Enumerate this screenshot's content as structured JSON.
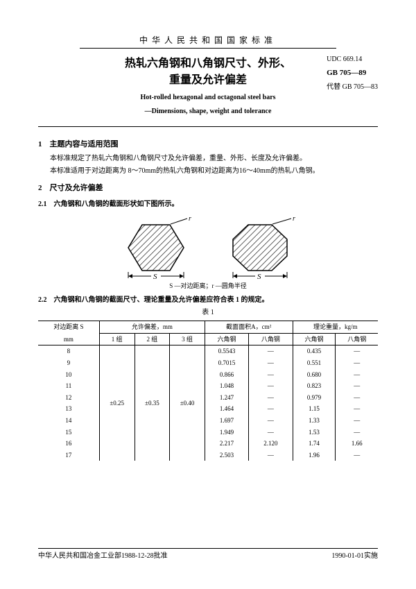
{
  "header": {
    "supTitle": "中华人民共和国国家标准",
    "zhTitle1": "热轧六角钢和八角钢尺寸、外形、",
    "zhTitle2": "重量及允许偏差",
    "enTitle1": "Hot-rolled hexagonal and octagonal steel bars",
    "enTitle2": "—Dimensions, shape, weight and tolerance",
    "udc": "UDC 669.14",
    "gb": "GB 705—89",
    "replaces": "代替 GB 705—83"
  },
  "section1": {
    "heading": "1　主题内容与适用范围",
    "p1": "本标准规定了热轧六角钢和八角钢尺寸及允许偏差，重量、外形、长度及允许偏差。",
    "p2": "本标准适用于对边距离为 8～70mm的热轧六角钢和对边距离为16～40mm的热轧八角钢。"
  },
  "section2": {
    "heading": "2　尺寸及允许偏差",
    "p21": "2.1　六角钢和八角钢的截面形状如下图所示。",
    "figCaption": "S —对边距离；r —圆角半径",
    "figLabel_r": "r",
    "figLabel_S": "S",
    "p22": "2.2　六角钢和八角钢的截面尺寸、理论重量及允许偏差应符合表 1 的规定。",
    "tblCaption": "表 1"
  },
  "table": {
    "colHead": {
      "s1": "对边距离 S",
      "s2": "mm",
      "tolHead": "允许偏差，mm",
      "areaHead": "截面面积A，cm²",
      "massHead": "理论重量，kg/m",
      "g1": "1 组",
      "g2": "2 组",
      "g3": "3 组",
      "hex": "六角钢",
      "oct": "八角钢"
    },
    "tol": {
      "g1": "±0.25",
      "g2": "±0.35",
      "g3": "±0.40"
    },
    "rows": [
      {
        "s": "8",
        "aHex": "0.5543",
        "aOct": "—",
        "mHex": "0.435",
        "mOct": "—"
      },
      {
        "s": "9",
        "aHex": "0.7015",
        "aOct": "—",
        "mHex": "0.551",
        "mOct": "—"
      },
      {
        "s": "10",
        "aHex": "0.866",
        "aOct": "—",
        "mHex": "0.680",
        "mOct": "—"
      },
      {
        "s": "11",
        "aHex": "1.048",
        "aOct": "—",
        "mHex": "0.823",
        "mOct": "—"
      },
      {
        "s": "12",
        "aHex": "1.247",
        "aOct": "—",
        "mHex": "0.979",
        "mOct": "—"
      },
      {
        "s": "13",
        "aHex": "1.464",
        "aOct": "—",
        "mHex": "1.15",
        "mOct": "—"
      },
      {
        "s": "14",
        "aHex": "1.697",
        "aOct": "—",
        "mHex": "1.33",
        "mOct": "—"
      },
      {
        "s": "15",
        "aHex": "1.949",
        "aOct": "—",
        "mHex": "1.53",
        "mOct": "—"
      },
      {
        "s": "16",
        "aHex": "2.217",
        "aOct": "2.120",
        "mHex": "1.74",
        "mOct": "1.66"
      },
      {
        "s": "17",
        "aHex": "2.503",
        "aOct": "—",
        "mHex": "1.96",
        "mOct": "—"
      }
    ]
  },
  "footer": {
    "left": "中华人民共和国冶金工业部1988-12-28批准",
    "right": "1990-01-01实施"
  },
  "style": {
    "textColor": "#000000",
    "bgColor": "#ffffff",
    "ruleColor": "#000000",
    "hatchColor": "#000000",
    "fontFamily": "SimSun / Songti",
    "baseFontSizePt": 10
  }
}
